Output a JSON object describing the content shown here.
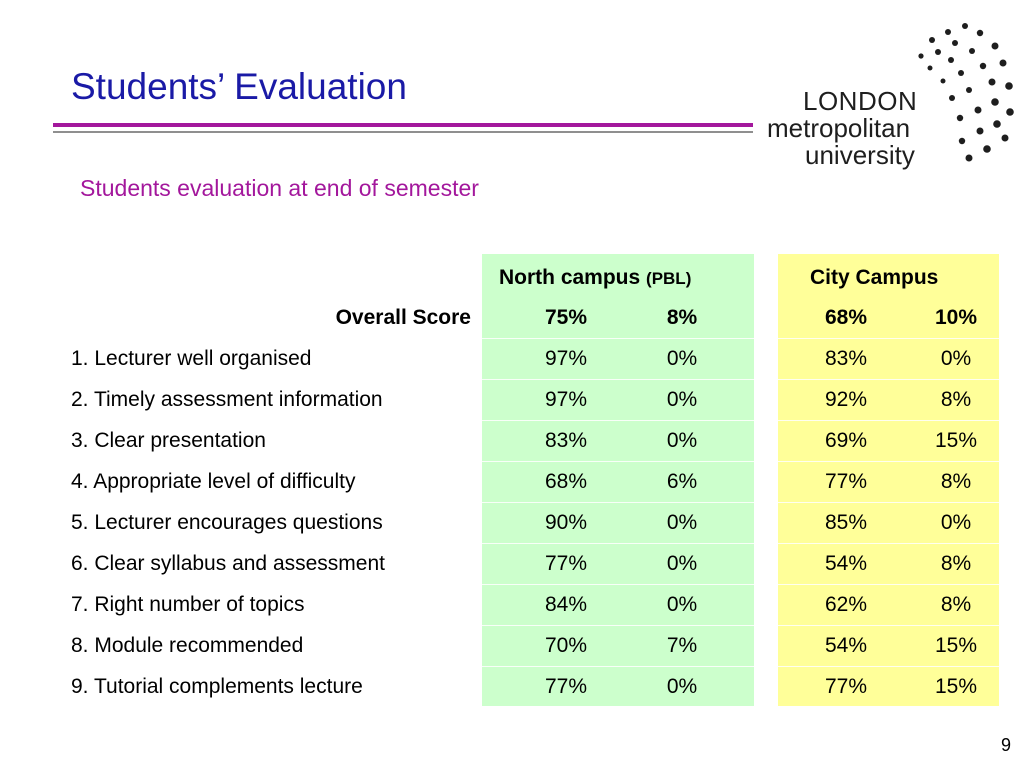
{
  "slide": {
    "title": "Students’ Evaluation",
    "subtitle": "Students evaluation at end of semester",
    "page_number": "9"
  },
  "logo": {
    "line1": "LONDON",
    "line2": "metropolitan",
    "line3": "university"
  },
  "table": {
    "headers": {
      "north_campus": "North campus",
      "north_campus_note": "(PBL)",
      "city_campus": "City Campus"
    },
    "overall": {
      "label": "Overall Score",
      "values": [
        "75%",
        "8%",
        "68%",
        "10%"
      ]
    },
    "rows": [
      {
        "label": "1. Lecturer well organised",
        "values": [
          "97%",
          "0%",
          "83%",
          "0%"
        ]
      },
      {
        "label": "2. Timely assessment information",
        "values": [
          "97%",
          "0%",
          "92%",
          "8%"
        ]
      },
      {
        "label": "3. Clear presentation",
        "values": [
          "83%",
          "0%",
          "69%",
          "15%"
        ]
      },
      {
        "label": "4. Appropriate level of difficulty",
        "values": [
          "68%",
          "6%",
          "77%",
          "8%"
        ]
      },
      {
        "label": "5. Lecturer encourages questions",
        "values": [
          "90%",
          "0%",
          "85%",
          "0%"
        ]
      },
      {
        "label": "6. Clear syllabus and assessment",
        "values": [
          "77%",
          "0%",
          "54%",
          "8%"
        ]
      },
      {
        "label": "7. Right number of topics",
        "values": [
          "84%",
          "0%",
          "62%",
          "8%"
        ]
      },
      {
        "label": "8. Module recommended",
        "values": [
          "70%",
          "7%",
          "54%",
          "15%"
        ]
      },
      {
        "label": "9. Tutorial complements lecture",
        "values": [
          "77%",
          "0%",
          "77%",
          "15%"
        ]
      }
    ]
  },
  "colors": {
    "title": "#1a1aa6",
    "accent": "#a3179c",
    "north_panel": "#ccffcc",
    "city_panel": "#ffff99"
  }
}
